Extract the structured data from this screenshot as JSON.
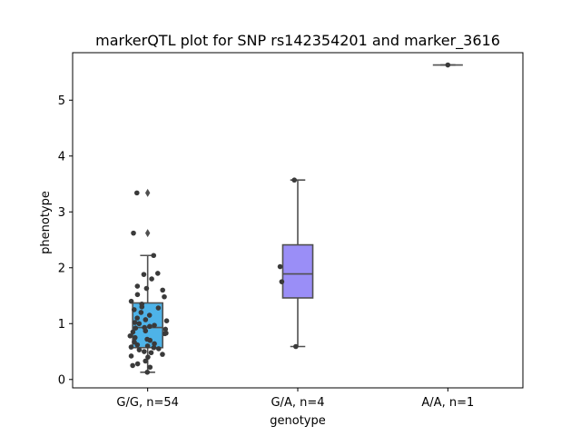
{
  "chart_data": {
    "type": "box",
    "title": "markerQTL plot for SNP rs142354201 and marker_3616",
    "xlabel": "genotype",
    "ylabel": "phenotype",
    "categories": [
      "G/G, n=54",
      "G/A, n=4",
      "A/A, n=1"
    ],
    "ylim": [
      -0.15,
      5.85
    ],
    "yticks": [
      0,
      1,
      2,
      3,
      4,
      5
    ],
    "grid": false,
    "legend": "none",
    "colors": {
      "box_fills": [
        "#4eb3e8",
        "#9a8ef7",
        "#9a8ef7"
      ],
      "line": "#505050",
      "point": "#3a3a3a"
    },
    "boxes": [
      {
        "category": "G/G, n=54",
        "q1": 0.57,
        "median": 0.93,
        "q3": 1.37,
        "whisker_low": 0.13,
        "whisker_high": 2.22,
        "outliers": [
          2.62,
          3.34
        ]
      },
      {
        "category": "G/A, n=4",
        "q1": 1.46,
        "median": 1.89,
        "q3": 2.41,
        "whisker_low": 0.59,
        "whisker_high": 3.57,
        "outliers": []
      },
      {
        "category": "A/A, n=1",
        "q1": 5.63,
        "median": 5.63,
        "q3": 5.63,
        "whisker_low": 5.63,
        "whisker_high": 5.63,
        "outliers": []
      }
    ],
    "points": [
      {
        "category": "G/G, n=54",
        "values": [
          0.13,
          0.22,
          0.25,
          0.28,
          0.33,
          0.4,
          0.42,
          0.45,
          0.48,
          0.5,
          0.53,
          0.55,
          0.57,
          0.58,
          0.6,
          0.62,
          0.64,
          0.67,
          0.7,
          0.72,
          0.75,
          0.78,
          0.82,
          0.83,
          0.85,
          0.87,
          0.9,
          0.92,
          0.93,
          0.95,
          0.97,
          1.0,
          1.02,
          1.05,
          1.07,
          1.1,
          1.15,
          1.2,
          1.25,
          1.28,
          1.3,
          1.35,
          1.4,
          1.48,
          1.52,
          1.6,
          1.63,
          1.67,
          1.8,
          1.88,
          1.9,
          2.22,
          2.62,
          3.34
        ]
      },
      {
        "category": "G/A, n=4",
        "values": [
          0.59,
          1.75,
          2.02,
          3.57
        ]
      },
      {
        "category": "A/A, n=1",
        "values": [
          5.63
        ]
      }
    ]
  }
}
